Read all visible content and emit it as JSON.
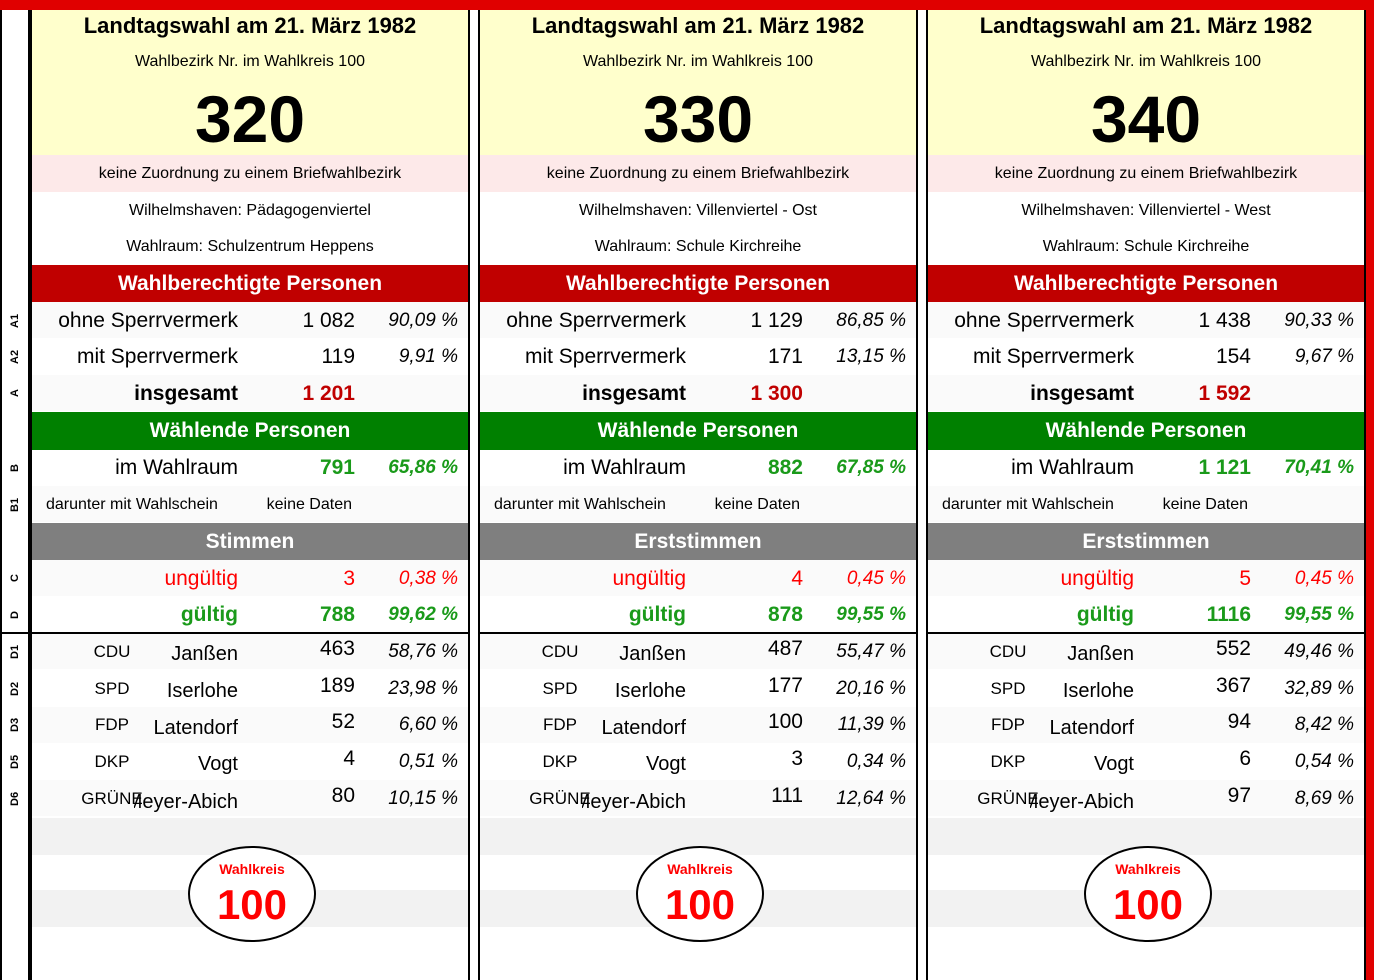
{
  "row_labels": [
    "A1",
    "A2",
    "A",
    "B",
    "B1",
    "C",
    "D",
    "D1",
    "D2",
    "D3",
    "D5",
    "D6"
  ],
  "panels": [
    {
      "title": "Landtagswahl am 21. März 1982",
      "subtitle": "Wahlbezirk Nr. im Wahlkreis 100",
      "number": "320",
      "assignment": "keine Zuordnung zu einem Briefwahlbezirk",
      "district": "Wilhelmshaven: Pädagogenviertel",
      "room": "Wahlraum: Schulzentrum Heppens",
      "eligible_header": "Wahlberechtigte Personen",
      "eligible": [
        {
          "label": "ohne Sperrvermerk",
          "value": "1 082",
          "percent": "90,09 %"
        },
        {
          "label": "mit Sperrvermerk",
          "value": "119",
          "percent": "9,91 %"
        },
        {
          "label": "insgesamt",
          "value": "1 201"
        }
      ],
      "voters_header": "Wählende Personen",
      "voters": {
        "label": "im Wahlraum",
        "value": "791",
        "percent": "65,86 %"
      },
      "ballot": {
        "label": "darunter mit Wahlschein",
        "value": "keine Daten"
      },
      "votes_header": "Stimmen",
      "invalid": {
        "label": "ungültig",
        "value": "3",
        "percent": "0,38 %"
      },
      "valid": {
        "label": "gültig",
        "value": "788",
        "percent": "99,62 %"
      },
      "parties": [
        {
          "party": "CDU",
          "candidate": "Janßen",
          "value": "463",
          "percent": "58,76 %"
        },
        {
          "party": "SPD",
          "candidate": "Iserlohe",
          "value": "189",
          "percent": "23,98 %"
        },
        {
          "party": "FDP",
          "candidate": "Latendorf",
          "value": "52",
          "percent": "6,60 %"
        },
        {
          "party": "DKP",
          "candidate": "Vogt",
          "value": "4",
          "percent": "0,51 %"
        },
        {
          "party": "GRÜNE",
          "candidate": "Meyer-Abich",
          "value": "80",
          "percent": "10,15 %"
        }
      ],
      "badge": {
        "label": "Wahlkreis",
        "number": "100"
      }
    },
    {
      "title": "Landtagswahl am 21. März 1982",
      "subtitle": "Wahlbezirk Nr. im Wahlkreis 100",
      "number": "330",
      "assignment": "keine Zuordnung zu einem Briefwahlbezirk",
      "district": "Wilhelmshaven: Villenviertel - Ost",
      "room": "Wahlraum: Schule Kirchreihe",
      "eligible_header": "Wahlberechtigte Personen",
      "eligible": [
        {
          "label": "ohne Sperrvermerk",
          "value": "1 129",
          "percent": "86,85 %"
        },
        {
          "label": "mit Sperrvermerk",
          "value": "171",
          "percent": "13,15 %"
        },
        {
          "label": "insgesamt",
          "value": "1 300"
        }
      ],
      "voters_header": "Wählende Personen",
      "voters": {
        "label": "im Wahlraum",
        "value": "882",
        "percent": "67,85 %"
      },
      "ballot": {
        "label": "darunter mit Wahlschein",
        "value": "keine Daten"
      },
      "votes_header": "Erststimmen",
      "invalid": {
        "label": "ungültig",
        "value": "4",
        "percent": "0,45 %"
      },
      "valid": {
        "label": "gültig",
        "value": "878",
        "percent": "99,55 %"
      },
      "parties": [
        {
          "party": "CDU",
          "candidate": "Janßen",
          "value": "487",
          "percent": "55,47 %"
        },
        {
          "party": "SPD",
          "candidate": "Iserlohe",
          "value": "177",
          "percent": "20,16 %"
        },
        {
          "party": "FDP",
          "candidate": "Latendorf",
          "value": "100",
          "percent": "11,39 %"
        },
        {
          "party": "DKP",
          "candidate": "Vogt",
          "value": "3",
          "percent": "0,34 %"
        },
        {
          "party": "GRÜNE",
          "candidate": "Meyer-Abich",
          "value": "111",
          "percent": "12,64 %"
        }
      ],
      "badge": {
        "label": "Wahlkreis",
        "number": "100"
      }
    },
    {
      "title": "Landtagswahl am 21. März 1982",
      "subtitle": "Wahlbezirk Nr. im Wahlkreis 100",
      "number": "340",
      "assignment": "keine Zuordnung zu einem Briefwahlbezirk",
      "district": "Wilhelmshaven: Villenviertel - West",
      "room": "Wahlraum: Schule Kirchreihe",
      "eligible_header": "Wahlberechtigte Personen",
      "eligible": [
        {
          "label": "ohne Sperrvermerk",
          "value": "1 438",
          "percent": "90,33 %"
        },
        {
          "label": "mit Sperrvermerk",
          "value": "154",
          "percent": "9,67 %"
        },
        {
          "label": "insgesamt",
          "value": "1 592"
        }
      ],
      "voters_header": "Wählende Personen",
      "voters": {
        "label": "im Wahlraum",
        "value": "1 121",
        "percent": "70,41 %"
      },
      "ballot": {
        "label": "darunter mit Wahlschein",
        "value": "keine Daten"
      },
      "votes_header": "Erststimmen",
      "invalid": {
        "label": "ungültig",
        "value": "5",
        "percent": "0,45 %"
      },
      "valid": {
        "label": "gültig",
        "value": "1116",
        "percent": "99,55 %"
      },
      "parties": [
        {
          "party": "CDU",
          "candidate": "Janßen",
          "value": "552",
          "percent": "49,46 %"
        },
        {
          "party": "SPD",
          "candidate": "Iserlohe",
          "value": "367",
          "percent": "32,89 %"
        },
        {
          "party": "FDP",
          "candidate": "Latendorf",
          "value": "94",
          "percent": "8,42 %"
        },
        {
          "party": "DKP",
          "candidate": "Vogt",
          "value": "6",
          "percent": "0,54 %"
        },
        {
          "party": "GRÜNE",
          "candidate": "Meyer-Abich",
          "value": "97",
          "percent": "8,69 %"
        }
      ],
      "badge": {
        "label": "Wahlkreis",
        "number": "100"
      }
    }
  ]
}
